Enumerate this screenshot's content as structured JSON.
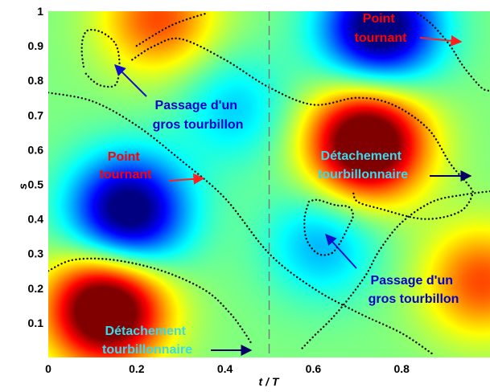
{
  "chart_data": {
    "type": "heatmap",
    "xlabel": "t / T",
    "ylabel": "s",
    "xlim": [
      0,
      1
    ],
    "ylim": [
      0,
      1
    ],
    "xticks": [
      0,
      0.2,
      0.4,
      0.6,
      0.8
    ],
    "xtick_labels": [
      "0",
      "0.2",
      "0.4",
      "0.6",
      "0.8"
    ],
    "yticks": [
      0.1,
      0.2,
      0.3,
      0.4,
      0.5,
      0.6,
      0.7,
      0.8,
      0.9,
      1
    ],
    "ytick_labels": [
      "0.1",
      "0.2",
      "0.3",
      "0.4",
      "0.5",
      "0.6",
      "0.7",
      "0.8",
      "0.9",
      "1"
    ],
    "colormap": "jet",
    "dashed_line_x": 0.5,
    "blobs": [
      {
        "t": 0.13,
        "s": 0.14,
        "sign": 1,
        "intensity": 1.0
      },
      {
        "t": 0.72,
        "s": 0.62,
        "sign": 1,
        "intensity": 1.0
      },
      {
        "t": 0.18,
        "s": 0.42,
        "sign": -1,
        "intensity": 0.85
      },
      {
        "t": 0.75,
        "s": 0.95,
        "sign": -1,
        "intensity": 0.85
      },
      {
        "t": 0.25,
        "s": 0.98,
        "sign": 1,
        "intensity": 0.45
      },
      {
        "t": 0.62,
        "s": 0.33,
        "sign": -1,
        "intensity": 0.3
      },
      {
        "t": 0.98,
        "s": 0.22,
        "sign": 1,
        "intensity": 0.45
      },
      {
        "t": 0.42,
        "s": 0.72,
        "sign": -1,
        "intensity": 0.25
      }
    ],
    "curves": [
      {
        "points": [
          [
            0,
            0.765
          ],
          [
            0.1,
            0.74
          ],
          [
            0.2,
            0.67
          ],
          [
            0.3,
            0.57
          ],
          [
            0.4,
            0.46
          ],
          [
            0.5,
            0.3
          ],
          [
            0.6,
            0.2
          ],
          [
            0.7,
            0.13
          ],
          [
            0.8,
            0.07
          ],
          [
            0.87,
            0.01
          ]
        ]
      },
      {
        "points": [
          [
            0,
            0.25
          ],
          [
            0.05,
            0.28
          ],
          [
            0.12,
            0.285
          ],
          [
            0.2,
            0.27
          ],
          [
            0.28,
            0.24
          ],
          [
            0.36,
            0.19
          ],
          [
            0.41,
            0.13
          ],
          [
            0.44,
            0.08
          ],
          [
            0.46,
            0.04
          ]
        ]
      },
      {
        "points": [
          [
            0.19,
            0.86
          ],
          [
            0.24,
            0.9
          ],
          [
            0.3,
            0.92
          ],
          [
            0.4,
            0.86
          ],
          [
            0.5,
            0.78
          ],
          [
            0.6,
            0.73
          ],
          [
            0.7,
            0.75
          ],
          [
            0.78,
            0.73
          ],
          [
            0.86,
            0.66
          ],
          [
            0.91,
            0.56
          ],
          [
            0.95,
            0.5
          ],
          [
            0.96,
            0.47
          ],
          [
            0.93,
            0.42
          ],
          [
            0.85,
            0.4
          ],
          [
            0.75,
            0.43
          ],
          [
            0.7,
            0.45
          ],
          [
            0.69,
            0.48
          ]
        ]
      },
      {
        "points": [
          [
            0.2,
            0.9
          ],
          [
            0.28,
            0.96
          ],
          [
            0.36,
            0.995
          ]
        ]
      },
      {
        "points": [
          [
            0.83,
            1.0
          ],
          [
            0.87,
            0.96
          ],
          [
            0.91,
            0.9
          ],
          [
            0.94,
            0.84
          ],
          [
            0.98,
            0.78
          ],
          [
            1.0,
            0.77
          ]
        ]
      },
      {
        "points": [
          [
            0.08,
            0.84
          ],
          [
            0.076,
            0.88
          ],
          [
            0.078,
            0.92
          ],
          [
            0.09,
            0.945
          ],
          [
            0.12,
            0.94
          ],
          [
            0.15,
            0.91
          ],
          [
            0.16,
            0.87
          ],
          [
            0.16,
            0.82
          ],
          [
            0.15,
            0.785
          ],
          [
            0.12,
            0.785
          ],
          [
            0.1,
            0.8
          ],
          [
            0.085,
            0.82
          ]
        ]
      },
      {
        "points": [
          [
            0.59,
            0.45
          ],
          [
            0.58,
            0.4
          ],
          [
            0.585,
            0.34
          ],
          [
            0.61,
            0.3
          ],
          [
            0.64,
            0.3
          ],
          [
            0.66,
            0.33
          ],
          [
            0.68,
            0.38
          ],
          [
            0.69,
            0.41
          ],
          [
            0.68,
            0.435
          ],
          [
            0.65,
            0.44
          ],
          [
            0.61,
            0.455
          ],
          [
            0.59,
            0.45
          ]
        ]
      },
      {
        "points": [
          [
            1.0,
            0.48
          ],
          [
            0.94,
            0.47
          ],
          [
            0.87,
            0.45
          ],
          [
            0.8,
            0.39
          ],
          [
            0.75,
            0.31
          ],
          [
            0.72,
            0.24
          ],
          [
            0.68,
            0.17
          ],
          [
            0.64,
            0.11
          ],
          [
            0.6,
            0.06
          ],
          [
            0.57,
            0.02
          ]
        ]
      }
    ]
  },
  "annotations": {
    "point_tournant_top": {
      "line1": "Point",
      "line2": "tournant"
    },
    "point_tournant_left": {
      "line1": "Point",
      "line2": "tournant"
    },
    "passage_left": {
      "line1": "Passage d'un",
      "line2": "gros tourbillon"
    },
    "passage_right": {
      "line1": "Passage d'un",
      "line2": "gros tourbillon"
    },
    "detachement_right": {
      "line1": "Détachement",
      "line2": "tourbillonnaire"
    },
    "detachement_bottom": {
      "line1": "Détachement",
      "line2": "tourbillonnaire"
    }
  },
  "colors": {
    "red_label": "#ff0000",
    "blue_label": "#0000cc",
    "cyan_label": "#33ddee",
    "arrow_red": "#ff2020",
    "arrow_navy": "#000066",
    "arrow_blue": "#1010cc"
  }
}
